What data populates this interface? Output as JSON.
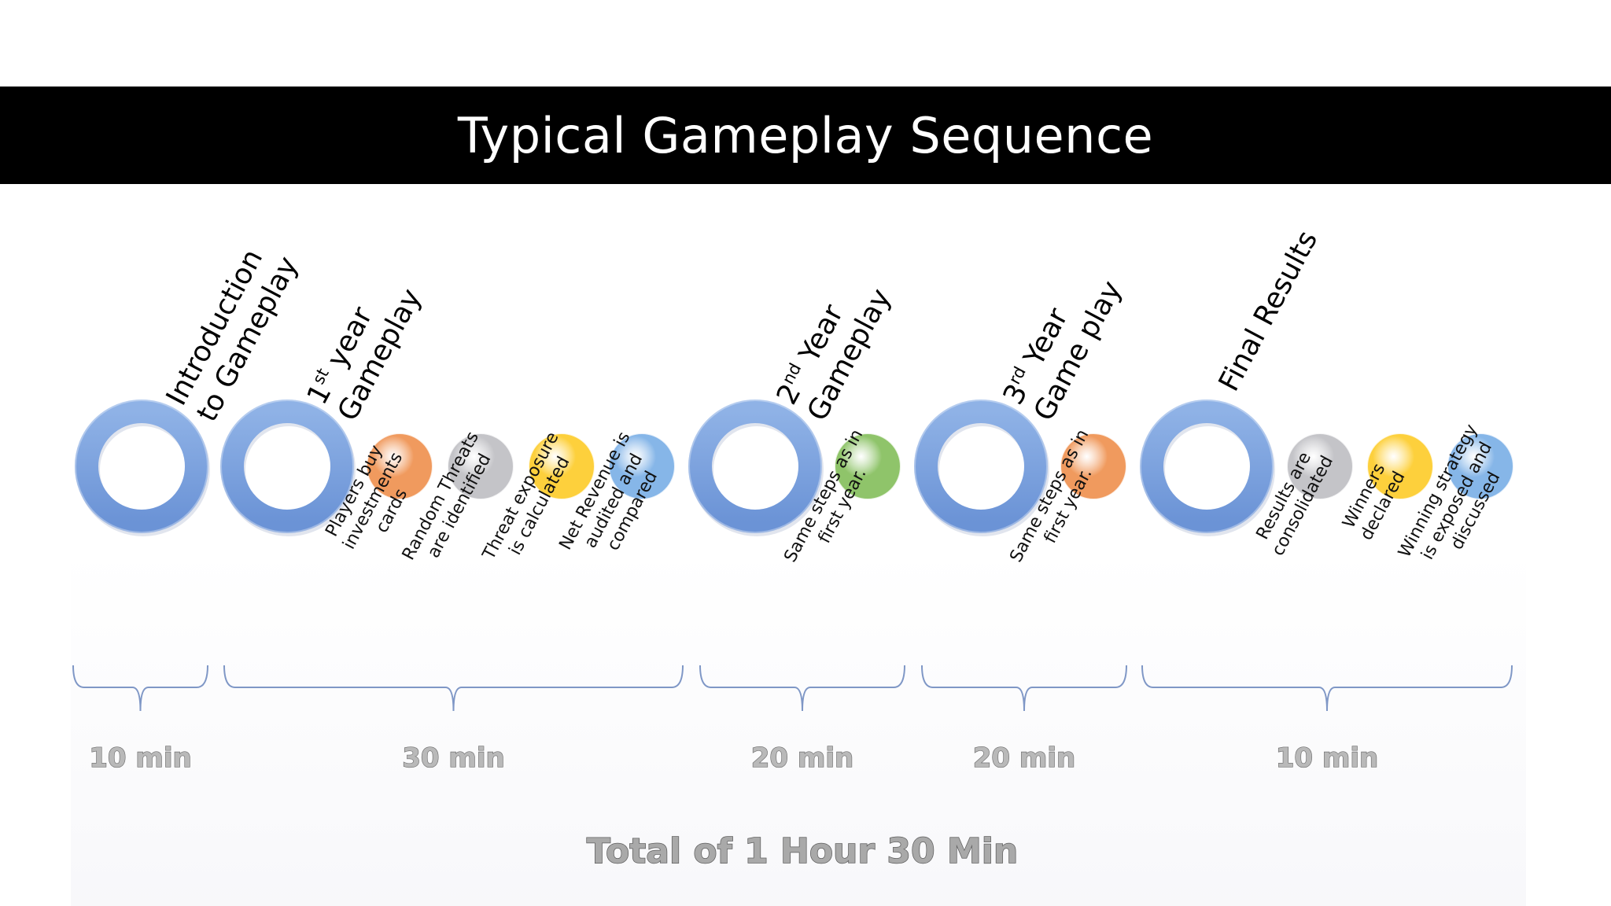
{
  "title": "Typical Gameplay Sequence",
  "stages": [
    {
      "lines": [
        {
          "text": "Introduction"
        },
        {
          "text": "to Gameplay"
        }
      ]
    },
    {
      "lines": [
        {
          "text": "1",
          "sup": "st",
          "rest": " year"
        },
        {
          "text": "Gameplay"
        }
      ]
    },
    {
      "lines": [
        {
          "text": "2",
          "sup": "nd",
          "rest": " Year"
        },
        {
          "text": "Gameplay"
        }
      ]
    },
    {
      "lines": [
        {
          "text": "3",
          "sup": "rd",
          "rest": " Year"
        },
        {
          "text": "Game play"
        }
      ]
    },
    {
      "lines": [
        {
          "text": "Final Results"
        }
      ]
    }
  ],
  "steps": [
    {
      "lines": [
        "Players buy",
        "investments",
        "cards"
      ],
      "color": "#f09a5e"
    },
    {
      "lines": [
        "Random Threats",
        "are identified"
      ],
      "color": "#c4c4c8"
    },
    {
      "lines": [
        "Threat exposure",
        "is calculated"
      ],
      "color": "#fdd03c"
    },
    {
      "lines": [
        "Net Revenue is",
        "audited and",
        "compared"
      ],
      "color": "#86b6e8"
    },
    {
      "lines": [
        "Same steps as in",
        "first year."
      ],
      "color": "#8fc46a"
    },
    {
      "lines": [
        "Same steps as in",
        "first year."
      ],
      "color": "#f09a5e"
    },
    {
      "lines": [
        "Results are",
        "consolidated"
      ],
      "color": "#c4c4c8"
    },
    {
      "lines": [
        "Winners",
        "declared"
      ],
      "color": "#fdd03c"
    },
    {
      "lines": [
        "Winning strategy",
        "is exposed and",
        "discussed"
      ],
      "color": "#86b6e8"
    }
  ],
  "durations": [
    "10 min",
    "30 min",
    "20 min",
    "20 min",
    "10 min"
  ],
  "total": "Total of 1 Hour 30 Min",
  "colors": {
    "ring": "#7aa3de",
    "brace": "#7f97c6",
    "title_bar": "#000000"
  }
}
